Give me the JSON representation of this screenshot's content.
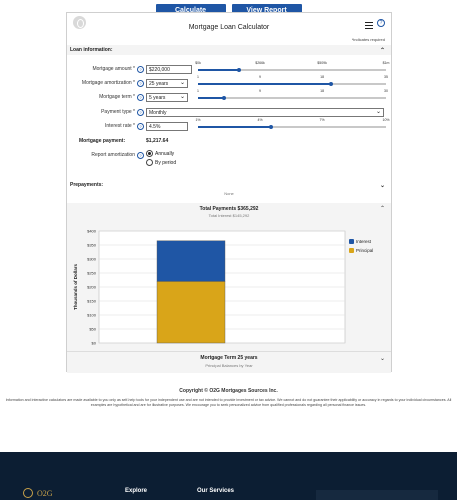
{
  "toolbar": {
    "calculate_label": "Calculate",
    "view_report_label": "View Report"
  },
  "calculator": {
    "title": "Mortgage Loan Calculator",
    "required_note": "*indicates required",
    "help_glyph": "?",
    "loan_section": "Loan information:",
    "fields": {
      "amount": {
        "label": "Mortgage amount *",
        "value": "$220,000",
        "ticks": [
          "$0k",
          "$266k",
          "$509k",
          "$1m"
        ],
        "fraction": 0.22
      },
      "amortization": {
        "label": "Mortgage amortization *",
        "value": "25 years",
        "ticks": [
          "1",
          "9",
          "18",
          "35"
        ],
        "fraction": 0.71
      },
      "term": {
        "label": "Mortgage term *",
        "value": "5 years",
        "ticks": [
          "1",
          "9",
          "18",
          "30"
        ],
        "fraction": 0.14
      },
      "payment_type": {
        "label": "Payment type *",
        "value": "Monthly"
      },
      "interest": {
        "label": "Interest rate *",
        "value": "4.5%",
        "ticks": [
          "1%",
          "4%",
          "7%",
          "10%"
        ],
        "fraction": 0.39
      }
    },
    "payment_label": "Mortgage payment:",
    "payment_value": "$1,217.64",
    "report_label": "Report amortization",
    "radio_annually": "Annually",
    "radio_period": "By period",
    "prepayments_label": "Prepayments:",
    "prepayments_value": "None",
    "total_payments": "Total Payments $365,292",
    "total_interest": "Total Interest $145,292",
    "term_title": "Mortgage Term 25 years",
    "term_sub": "Principal Balances by Year"
  },
  "chart_data": {
    "type": "bar",
    "categories": [
      ""
    ],
    "series": [
      {
        "name": "Principal",
        "values": [
          220
        ],
        "color": "#d9a519"
      },
      {
        "name": "Interest",
        "values": [
          145.3
        ],
        "color": "#1f56a5"
      }
    ],
    "stacked": true,
    "ylabel": "Thousands of Dollars",
    "yticks": [
      "$0",
      "$50",
      "$100",
      "$150",
      "$200",
      "$250",
      "$300",
      "$350",
      "$400"
    ],
    "ylim": [
      0,
      400
    ],
    "legend": "right",
    "grid": true
  },
  "footer": {
    "copyright": "Copyright © O2G Mortgages Sources Inc.",
    "disclaimer": "Information and interactive calculators are made available to you only as self-help tools for your independent use and are not intended to provide investment or tax advice. We cannot and do not guarantee their applicability or accuracy in regards to your individual circumstances. All examples are hypothetical and are for illustrative purposes. We encourage you to seek personalized advice from qualified professionals regarding all personal finance issues.",
    "logo_text": "O2G",
    "explore": "Explore",
    "services": "Our Services"
  }
}
